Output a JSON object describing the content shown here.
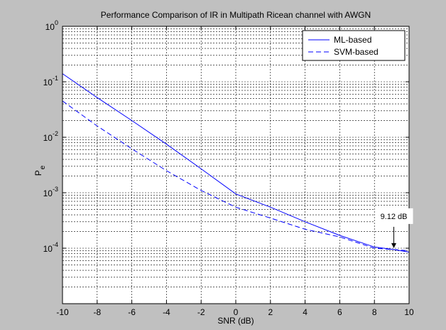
{
  "chart_data": {
    "type": "line",
    "title": "Performance Comparison of IR in Multipath Ricean channel with AWGN",
    "xlabel": "SNR (dB)",
    "ylabel": "P",
    "ylabel_sub": "e",
    "xlim": [
      -10,
      10
    ],
    "ylim": [
      1e-05,
      1
    ],
    "yscale": "log",
    "grid": true,
    "legend_position": "top-right",
    "x_ticks": [
      -10,
      -8,
      -6,
      -4,
      -2,
      0,
      2,
      4,
      6,
      8,
      10
    ],
    "x_tick_labels": [
      "-10",
      "-8",
      "-6",
      "-4",
      "-2",
      "0",
      "2",
      "4",
      "6",
      "8",
      "10"
    ],
    "y_ticks": [
      1,
      0.1,
      0.01,
      0.001,
      0.0001
    ],
    "y_tick_labels": [
      {
        "base": "10",
        "exp": "0"
      },
      {
        "base": "10",
        "exp": "-1"
      },
      {
        "base": "10",
        "exp": "-2"
      },
      {
        "base": "10",
        "exp": "-3"
      },
      {
        "base": "10",
        "exp": "-4"
      }
    ],
    "series": [
      {
        "name": "ML-based",
        "style": "solid",
        "color": "#0000ff",
        "x": [
          -10,
          -8,
          -6,
          -4,
          -2,
          0,
          2,
          4,
          6,
          8,
          9.12,
          10
        ],
        "y": [
          0.14,
          0.052,
          0.02,
          0.0075,
          0.0027,
          0.00095,
          0.00055,
          0.0003,
          0.00017,
          0.000105,
          9.45e-05,
          8.5e-05
        ]
      },
      {
        "name": "SVM-based",
        "style": "dashed",
        "color": "#0000ff",
        "x": [
          -10,
          -8,
          -6,
          -4,
          -2,
          0,
          2,
          4,
          6,
          8,
          9.12,
          10
        ],
        "y": [
          0.045,
          0.016,
          0.0062,
          0.0025,
          0.0011,
          0.00055,
          0.00035,
          0.00022,
          0.00016,
          0.0001,
          9.45e-05,
          9e-05
        ]
      }
    ],
    "annotation": {
      "text": "9.12 dB",
      "x": 9.12,
      "y": 9.45e-05
    }
  }
}
